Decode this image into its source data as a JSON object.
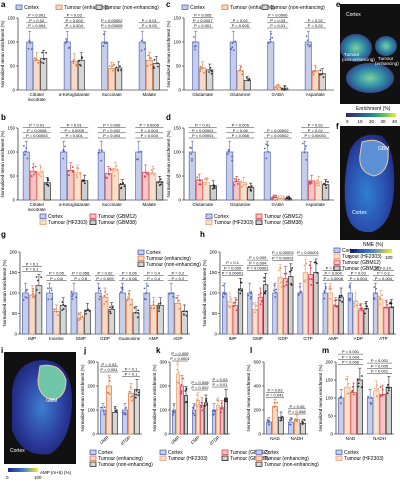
{
  "colors": {
    "cortex": "#5567b4",
    "cortex_fill": "#c5cde9",
    "tumour_enh": "#e07b44",
    "tumour_enh_fill": "#f6d9c6",
    "tumour_non": "#333333",
    "tumour_non_fill": "#d6d6d6",
    "gbm12": "#d94148",
    "hf2303": "#e9a070",
    "gbm38": "#222222",
    "map_low": "#3b1f6b",
    "map_mid": "#21908c",
    "map_high": "#fde725"
  },
  "panels": {
    "a": {
      "label": "a",
      "ylabel": "Normalized mean enrichment (%)",
      "legend": [
        "Cortex",
        "Tumour (enhancing)",
        "Tumour (non-enhancing)"
      ]
    },
    "b": {
      "label": "b",
      "ylabel": "Normalized mean enrichment (%)",
      "legend": [
        "Cortex",
        "Tumour (GBM12)",
        "Tumour (HF2303)",
        "Tumour (GBM38)"
      ]
    },
    "c": {
      "label": "c",
      "ylabel": "Normalized mean enrichment (%)",
      "legend": [
        "Cortex",
        "Tumour (enhancing)",
        "Tumour (non-enhancing)"
      ]
    },
    "d": {
      "label": "d",
      "ylabel": "Normalized mean enrichment (%)",
      "legend": [
        "Cortex",
        "Tumour (GBM12)",
        "Tumour (HF2303)",
        "Tumour (GBM38)"
      ]
    },
    "e": {
      "label": "e",
      "cortex": "Cortex",
      "non_enh": "Tumour\n(non-enhancing)",
      "enh": "Tumour\n(enhancing)",
      "bar_title": "Enrichment (%)",
      "ticks": [
        "0",
        "10",
        "20",
        "30",
        "40"
      ]
    },
    "f": {
      "label": "f",
      "gbm": "GBM",
      "cortex": "Cortex",
      "bar_title": "NME (%)",
      "ticks": [
        "0",
        "100"
      ]
    },
    "g": {
      "label": "g",
      "ylabel": "Normalized mean enrichment (%)",
      "legend": [
        "Cortex",
        "Tumour (enhancing)",
        "Tumour (non-enhancing)"
      ]
    },
    "h": {
      "label": "h",
      "ylabel": "Normalized mean enrichment (%)",
      "legend": [
        "Cortex",
        "Tumour (HF2303)",
        "Tumour (GBM12)",
        "Tumour (GBM38)"
      ]
    },
    "i": {
      "label": "i",
      "gbm": "GBM",
      "cortex": "Cortex",
      "bar_title": "AMP (m+5) (%)",
      "ticks": [
        "0",
        "100"
      ]
    },
    "j": {
      "label": "j",
      "ylabel": "Normalized mean enrichment (%)"
    },
    "k": {
      "label": "k",
      "ylabel": "Normalized mean enrichment (%)"
    },
    "l": {
      "label": "l",
      "ylabel": "Normalized mean enrichment (%)"
    },
    "m": {
      "label": "m",
      "ylabel": "Normalized mean enrichment (%)"
    },
    "jl_legend": [
      "Cortex",
      "Tumour (enhancing)",
      "Tumour (non-enhancing)"
    ],
    "km_legend": [
      "Cortex",
      "Tumour (HF2303)",
      "Tumour (GBM12)",
      "Tumour (GBM38)"
    ]
  },
  "chart_data": [
    {
      "id": "a",
      "type": "bar",
      "categories": [
        "Citrate/\nisocitrate",
        "α-Ketoglutarate",
        "Succinate",
        "Malate"
      ],
      "ylim": [
        0,
        150
      ],
      "yticks": [
        0,
        50,
        100,
        150
      ],
      "series": [
        {
          "name": "Cortex",
          "values": [
            100,
            100,
            100,
            100
          ]
        },
        {
          "name": "Tumour (enhancing)",
          "values": [
            62,
            60,
            45,
            62
          ]
        },
        {
          "name": "Tumour (non-enhancing)",
          "values": [
            66,
            62,
            46,
            55
          ]
        }
      ],
      "pvalues": [
        [
          "P = 0.004",
          "P = 0.02",
          "P = 0.001"
        ],
        [
          "P = 0.004",
          "P = 0.002",
          "P = 0.03"
        ],
        [
          "P = 0.00005",
          "P = 0.00002"
        ],
        [
          "P = 0.03",
          "P = 0.01"
        ]
      ]
    },
    {
      "id": "b",
      "type": "bar",
      "categories": [
        "Citrate/\nisocitrate",
        "α-Ketoglutarate",
        "Succinate",
        "Malate"
      ],
      "ylim": [
        0,
        150
      ],
      "yticks": [
        0,
        50,
        100,
        150
      ],
      "series": [
        {
          "name": "Cortex",
          "values": [
            100,
            100,
            100,
            100
          ]
        },
        {
          "name": "Tumour (GBM12)",
          "values": [
            60,
            62,
            55,
            58
          ]
        },
        {
          "name": "Tumour (HF2303)",
          "values": [
            58,
            58,
            62,
            56
          ]
        },
        {
          "name": "Tumour (GBM38)",
          "values": [
            36,
            40,
            32,
            38
          ]
        }
      ],
      "pvalues": [
        [
          "P = 0.00003",
          "P = 0.0008",
          "P = 0.01"
        ],
        [
          "P = 0.001",
          "P = 0.0009",
          "P = 0.01"
        ],
        [
          "P = 0.004",
          "P = 0.002",
          "P = 0.006"
        ],
        [
          "P = 0.004",
          "P = 0.004",
          "P = 0.0006"
        ]
      ]
    },
    {
      "id": "c",
      "type": "bar",
      "categories": [
        "Glutamate",
        "Glutamine",
        "GABA",
        "Aspartate"
      ],
      "ylim": [
        0,
        150
      ],
      "yticks": [
        0,
        50,
        100,
        150
      ],
      "series": [
        {
          "name": "Cortex",
          "values": [
            100,
            100,
            100,
            100
          ]
        },
        {
          "name": "Tumour (enhancing)",
          "values": [
            46,
            40,
            6,
            40
          ]
        },
        {
          "name": "Tumour (non-enhancing)",
          "values": [
            42,
            20,
            4,
            34
          ]
        }
      ],
      "pvalues": [
        [
          "P = 0.001",
          "P = 0.0007",
          "P = 0.005"
        ],
        [
          "P = 0.005",
          "P = 0.02"
        ],
        [
          "P = 0.01",
          "P = 0.03",
          "P = 0.0006"
        ],
        [
          "P = 0.02",
          "P = 0.02"
        ]
      ]
    },
    {
      "id": "d",
      "type": "bar",
      "categories": [
        "Glutamate",
        "Glutamine",
        "GABA",
        "Aspartate"
      ],
      "ylim": [
        0,
        150
      ],
      "yticks": [
        0,
        50,
        100,
        150
      ],
      "series": [
        {
          "name": "Cortex",
          "values": [
            100,
            100,
            100,
            100
          ]
        },
        {
          "name": "Tumour (GBM12)",
          "values": [
            42,
            38,
            5,
            40
          ]
        },
        {
          "name": "Tumour (HF2303)",
          "values": [
            36,
            36,
            4,
            38
          ]
        },
        {
          "name": "Tumour (GBM38)",
          "values": [
            30,
            26,
            3,
            32
          ]
        }
      ],
      "pvalues": [
        [
          "P < 0.00001",
          "P < 0.00001",
          "P = 0.01"
        ],
        [
          "P = 0.058",
          "P = 0.06",
          "P = 0.005"
        ],
        [
          "P = 0.00002",
          "P = 0.00002"
        ],
        [
          "P < 0.00001",
          "P = 0.02",
          "P = 0.02"
        ]
      ]
    },
    {
      "id": "g",
      "type": "bar",
      "categories": [
        "IMP",
        "Inosine",
        "GMP",
        "GDP",
        "Guanosine",
        "AMP",
        "ADP"
      ],
      "ylim": [
        0,
        200
      ],
      "yticks": [
        0,
        50,
        100,
        150,
        200
      ],
      "series": [
        {
          "name": "Cortex",
          "values": [
            100,
            100,
            100,
            100,
            100,
            100,
            100
          ]
        },
        {
          "name": "Tumour (enhancing)",
          "values": [
            95,
            55,
            40,
            90,
            85,
            70,
            75
          ]
        },
        {
          "name": "Tumour (non-enhancing)",
          "values": [
            118,
            70,
            58,
            60,
            52,
            70,
            55
          ]
        }
      ],
      "pvalues": [
        [
          "P = 0.1",
          "P = 0.1"
        ],
        [
          "P = 0.6",
          "P = 0.05"
        ],
        [
          "P = 0.6",
          "P = 0.058"
        ],
        [
          "P = 0.009",
          "P = 0.02"
        ],
        [
          "P = 0.08",
          "P = 0.06"
        ],
        [
          "P = 0.4",
          "P = 0.4"
        ],
        [
          "P = 0.2",
          "P = 0.2"
        ]
      ]
    },
    {
      "id": "h",
      "type": "bar",
      "categories": [
        "IMP",
        "GMP",
        "GDP",
        "GTP",
        "AMP",
        "ADP",
        "ATP"
      ],
      "ylim": [
        0,
        200
      ],
      "yticks": [
        0,
        50,
        100,
        150,
        200
      ],
      "series": [
        {
          "name": "Cortex",
          "values": [
            100,
            100,
            100,
            100,
            100,
            100,
            100
          ]
        },
        {
          "name": "Tumour (HF2303)",
          "values": [
            80,
            60,
            138,
            150,
            100,
            80,
            85
          ]
        },
        {
          "name": "Tumour (GBM12)",
          "values": [
            70,
            90,
            135,
            145,
            70,
            58,
            65
          ]
        },
        {
          "name": "Tumour (GBM38)",
          "values": [
            110,
            120,
            140,
            150,
            90,
            62,
            66
          ]
        }
      ],
      "pvalues": [
        [
          "P = 0.00001",
          "P = 0.009",
          "P = 0.1"
        ],
        [
          "P = 0.00001",
          "P = 0.004",
          "P = 0.009"
        ],
        [
          "P = 0.00001",
          "P = 0.00003"
        ],
        [
          "P = 0.00001"
        ],
        [
          "P = 0.0008",
          "P = 0.004",
          "P = 0.01"
        ],
        [
          "P = 0.004",
          "P = 0.03"
        ],
        [
          "P = 0.004",
          "P = 0.2",
          "P = 0.14"
        ]
      ]
    },
    {
      "id": "j",
      "type": "bar",
      "categories": [
        "UMP",
        "dTDP"
      ],
      "ylim": [
        0,
        300
      ],
      "yticks": [
        0,
        100,
        200,
        300
      ],
      "series": [
        {
          "name": "Cortex",
          "values": [
            100,
            100
          ]
        },
        {
          "name": "Tumour (enhancing)",
          "values": [
            200,
            170
          ]
        },
        {
          "name": "Tumour (non-enhancing)",
          "values": [
            90,
            185
          ]
        }
      ],
      "pvalues": [
        [
          "P = 0.051",
          "P = 0.03"
        ],
        [
          "P = 0.1",
          "P = 0.1"
        ]
      ]
    },
    {
      "id": "k",
      "type": "bar",
      "categories": [
        "UMP",
        "CMP",
        "dTDP"
      ],
      "ylim": [
        0,
        300
      ],
      "yticks": [
        0,
        100,
        200,
        300
      ],
      "series": [
        {
          "name": "Cortex",
          "values": [
            100,
            100,
            100
          ]
        },
        {
          "name": "Tumour (HF2303)",
          "values": [
            250,
            140,
            120
          ]
        },
        {
          "name": "Tumour (GBM12)",
          "values": [
            200,
            120,
            110
          ]
        },
        {
          "name": "Tumour (GBM38)",
          "values": [
            160,
            130,
            150
          ]
        }
      ],
      "pvalues": [
        [
          "P = 0.0001",
          "P = 0.005"
        ],
        [
          "P = 0.002",
          "P = 0.008"
        ],
        [
          "P = 0.01",
          "P = 0.03"
        ]
      ]
    },
    {
      "id": "l",
      "type": "bar",
      "categories": [
        "NAD",
        "NADH"
      ],
      "ylim": [
        0,
        600
      ],
      "yticks": [
        0,
        200,
        400,
        600
      ],
      "series": [
        {
          "name": "Cortex",
          "values": [
            100,
            100
          ]
        },
        {
          "name": "Tumour (enhancing)",
          "values": [
            230,
            120
          ]
        },
        {
          "name": "Tumour (non-enhancing)",
          "values": [
            140,
            90
          ]
        }
      ],
      "pvalues": [
        [
          "P = 0.041",
          "P = 0.03"
        ],
        [
          "P = 0.048",
          "P = 0.05"
        ]
      ]
    },
    {
      "id": "m",
      "type": "bar",
      "categories": [
        "NAD",
        "NADH"
      ],
      "ylim": [
        0,
        200
      ],
      "yticks": [
        0,
        50,
        100,
        150,
        200
      ],
      "series": [
        {
          "name": "Cortex",
          "values": [
            100,
            100
          ]
        },
        {
          "name": "Tumour (HF2303)",
          "values": [
            130,
            120
          ]
        },
        {
          "name": "Tumour (GBM12)",
          "values": [
            115,
            110
          ]
        },
        {
          "name": "Tumour (GBM38)",
          "values": [
            150,
            130
          ]
        }
      ],
      "pvalues": [
        [
          "P = 0.006",
          "P = 0.004",
          "P = 0.001"
        ],
        [
          "P = 0.001",
          "P = 0.005",
          "P = 0.001"
        ]
      ]
    }
  ]
}
